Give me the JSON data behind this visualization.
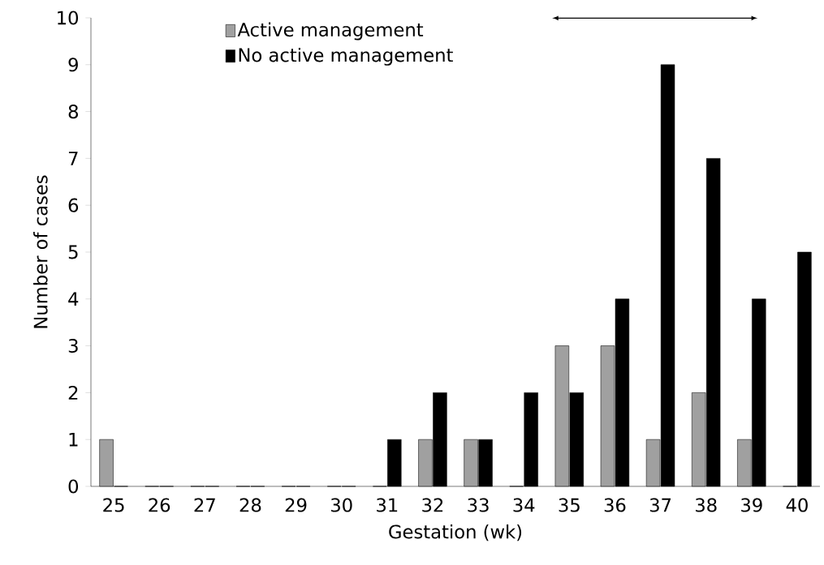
{
  "chart_data": {
    "type": "bar",
    "xlabel": "Gestation (wk)",
    "ylabel": "Number of cases",
    "categories": [
      "25",
      "26",
      "27",
      "28",
      "29",
      "30",
      "31",
      "32",
      "33",
      "34",
      "35",
      "36",
      "37",
      "38",
      "39",
      "40"
    ],
    "series": [
      {
        "name": "Active management",
        "color": "#a0a0a0",
        "values": [
          1,
          0,
          0,
          0,
          0,
          0,
          0,
          1,
          1,
          0,
          3,
          3,
          1,
          2,
          1,
          0
        ]
      },
      {
        "name": "No active management",
        "color": "#000000",
        "values": [
          0,
          0,
          0,
          0,
          0,
          0,
          1,
          2,
          1,
          2,
          2,
          4,
          9,
          7,
          4,
          5
        ]
      }
    ],
    "ylim": [
      0,
      10
    ],
    "yticks": [
      0,
      1,
      2,
      3,
      4,
      5,
      6,
      7,
      8,
      9,
      10
    ],
    "grid": false,
    "legend": "top"
  }
}
